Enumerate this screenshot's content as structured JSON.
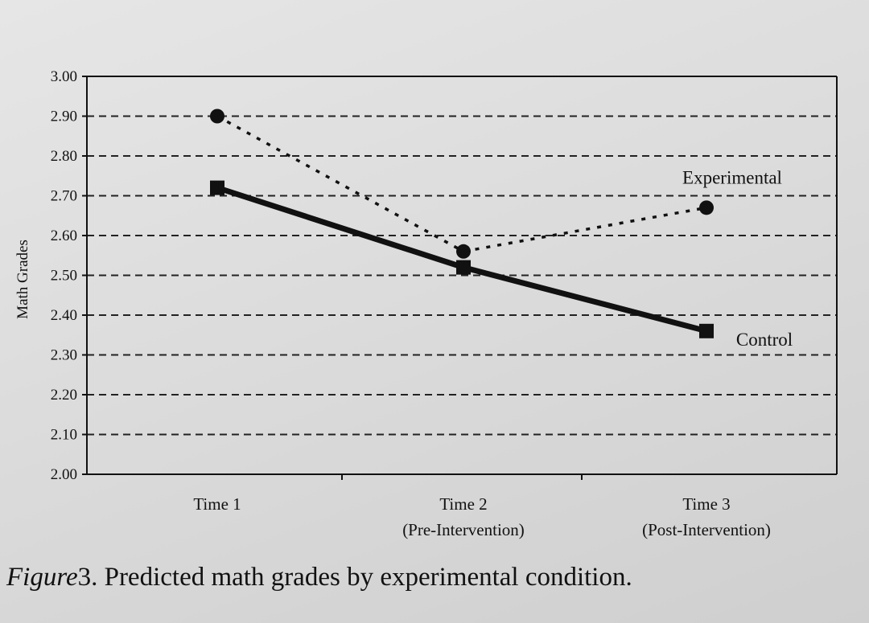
{
  "chart_data": {
    "type": "line",
    "title": "",
    "xlabel": "",
    "ylabel": "Math Grades",
    "ylim": [
      2.0,
      3.0
    ],
    "yticks": [
      "3.00",
      "2.90",
      "2.80",
      "2.70",
      "2.60",
      "2.50",
      "2.40",
      "2.30",
      "2.20",
      "2.10",
      "2.00"
    ],
    "categories": [
      {
        "line1": "Time 1",
        "line2": ""
      },
      {
        "line1": "Time 2",
        "line2": "(Pre-Intervention)"
      },
      {
        "line1": "Time 3",
        "line2": "(Post-Intervention)"
      }
    ],
    "grid": "dashed horizontal",
    "series": [
      {
        "name": "Experimental",
        "values": [
          2.9,
          2.56,
          2.67
        ],
        "style": "dotted",
        "marker": "circle",
        "color": "#111111"
      },
      {
        "name": "Control",
        "values": [
          2.72,
          2.52,
          2.36
        ],
        "style": "solid",
        "marker": "square",
        "color": "#111111"
      }
    ]
  },
  "caption": {
    "figure": "Figure",
    "number": "3.",
    "text": "Predicted math grades by experimental condition."
  }
}
